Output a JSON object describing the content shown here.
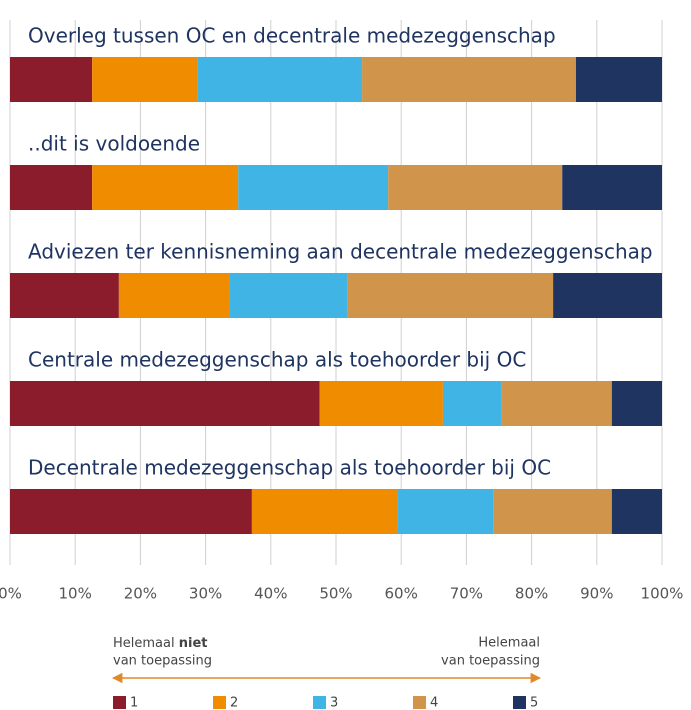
{
  "chart_data": {
    "type": "stacked-bar-horizontal",
    "categories": [
      "Overleg tussen OC en decentrale medezeggenschap",
      "..dit is voldoende",
      "Adviezen ter kennisneming aan decentrale medezeggenschap",
      "Centrale medezeggenschap als toehoorder bij OC",
      "Decentrale medezeggenschap als toehoorder bij OC"
    ],
    "series": [
      {
        "name": "1",
        "color": "#8b1c2b",
        "values": [
          12.6,
          12.6,
          16.7,
          47.5,
          37.1
        ]
      },
      {
        "name": "2",
        "color": "#f08c00",
        "values": [
          16.1,
          22.4,
          16.9,
          18.9,
          22.4
        ]
      },
      {
        "name": "3",
        "color": "#41b4e6",
        "values": [
          25.3,
          23.0,
          18.1,
          9.0,
          14.7
        ]
      },
      {
        "name": "4",
        "color": "#d0954a",
        "values": [
          32.8,
          26.7,
          31.6,
          16.9,
          18.1
        ]
      },
      {
        "name": "5",
        "color": "#1f3461",
        "values": [
          13.2,
          15.3,
          16.7,
          7.7,
          7.7
        ]
      }
    ],
    "xlim": [
      0,
      100
    ],
    "xticks": [
      {
        "value": 0,
        "label": "0%"
      },
      {
        "value": 10,
        "label": "10%"
      },
      {
        "value": 20,
        "label": "20%"
      },
      {
        "value": 30,
        "label": "30%"
      },
      {
        "value": 40,
        "label": "40%"
      },
      {
        "value": 50,
        "label": "50%"
      },
      {
        "value": 60,
        "label": "60%"
      },
      {
        "value": 70,
        "label": "70%"
      },
      {
        "value": 80,
        "label": "80%"
      },
      {
        "value": 90,
        "label": "90%"
      },
      {
        "value": 100,
        "label": "100%"
      }
    ],
    "grid": true,
    "annotations": {
      "left": [
        "Helemaal",
        "niet",
        "van toepassing"
      ],
      "right": [
        "Helemaal",
        "van toepassing"
      ]
    },
    "legend": "bottom"
  }
}
